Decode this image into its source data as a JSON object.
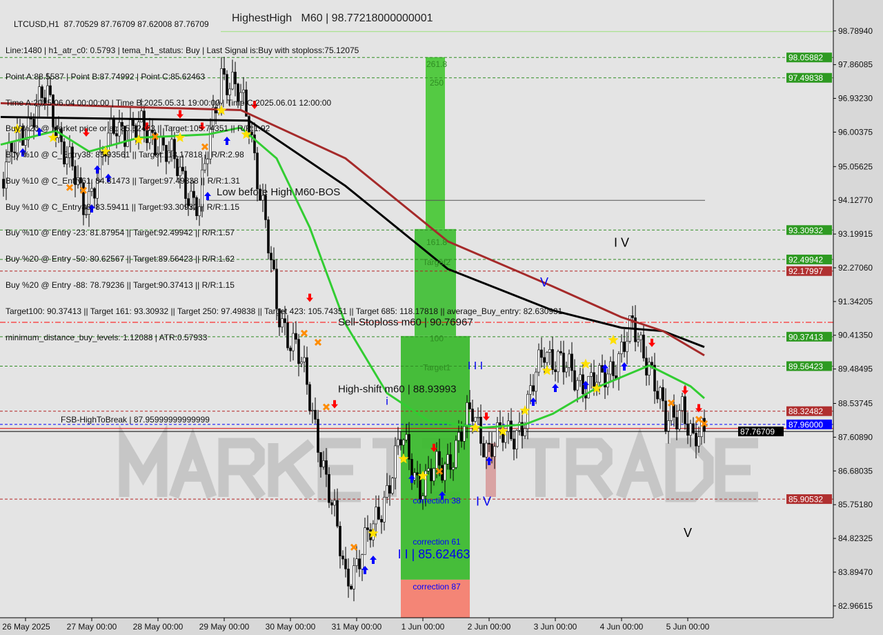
{
  "header": {
    "symbol_line": "LTCUSD,H1  87.70529 87.76709 87.62008 87.76709",
    "lines": [
      "Line:1480 | h1_atr_c0: 0.5793 | tema_h1_status: Buy | Last Signal is:Buy with stoploss:75.12075",
      "Point A:88.5587 | Point B:87.74992 | Point C:85.62463",
      "Time A:2025.06.04 00:00:00 | Time B:2025.05.31 19:00:00 | Time C:2025.06.01 12:00:00",
      "Buy %20 @ Market price or at: 85.62463 || Target:105.74351 || R/R:1.92",
      "Buy %10 @ C_Entry38: 85.93561 || Target:118.17818 || R/R:2.98",
      "Buy %10 @ C_Entry61: 84.81473 || Target:97.49838 || R/R:1.31",
      "Buy %10 @ C_Entry88: 83.59411 || Target:93.30932 || R/R:1.15",
      "Buy %10 @ Entry -23: 81.87954 || Target:92.49942 || R/R:1.57",
      "Buy %20 @ Entry -50: 80.62567 || Target:89.56423 || R/R:1.62",
      "Buy %20 @ Entry -88: 78.79236 || Target:90.37413 || R/R:1.15",
      "Target100: 90.37413 || Target 161: 93.30932 || Target 250: 97.49838 || Target 423: 105.74351 || Target 685: 118.17818 || average_Buy_entry: 82.630931",
      "minimum_distance_buy_levels: 1.12088 | ATR:0.57933"
    ],
    "highest_high": "HighestHigh   M60 | 98.77218000000001"
  },
  "watermark": "MARKETZITRADE",
  "chart_data": {
    "type": "candlestick",
    "symbol": "LTCUSD",
    "timeframe": "H1",
    "ylim": [
      82.64,
      99.64
    ],
    "xlim": [
      "2025-05-25 14:45",
      "2025-06-07 04:45"
    ],
    "grid": false,
    "y_ticks": [
      "98.78940",
      "97.86085",
      "96.93230",
      "96.00375",
      "95.05625",
      "94.12770",
      "93.19915",
      "92.27060",
      "91.34205",
      "90.41350",
      "89.48495",
      "88.53745",
      "87.60890",
      "86.68035",
      "85.75180",
      "84.82325",
      "83.89470",
      "82.96615"
    ],
    "x_ticks": [
      {
        "t": "2025-05-26 00:00",
        "label": "26 May 2025"
      },
      {
        "t": "2025-05-27 00:00",
        "label": "27 May 00:00"
      },
      {
        "t": "2025-05-28 00:00",
        "label": "28 May 00:00"
      },
      {
        "t": "2025-05-29 00:00",
        "label": "29 May 00:00"
      },
      {
        "t": "2025-05-30 00:00",
        "label": "30 May 00:00"
      },
      {
        "t": "2025-05-31 00:00",
        "label": "31 May 00:00"
      },
      {
        "t": "2025-06-01 00:00",
        "label": "1 Jun 00:00"
      },
      {
        "t": "2025-06-02 00:00",
        "label": "2 Jun 00:00"
      },
      {
        "t": "2025-06-03 00:00",
        "label": "3 Jun 00:00"
      },
      {
        "t": "2025-06-04 00:00",
        "label": "4 Jun 00:00"
      },
      {
        "t": "2025-06-05 00:00",
        "label": "5 Jun 00:00"
      }
    ],
    "price_path": [
      [
        "2025-05-25 16:00",
        94.71
      ],
      [
        "2025-05-25 22:00",
        96.03
      ],
      [
        "2025-05-26 08:00",
        96.98
      ],
      [
        "2025-05-26 21:00",
        93.95
      ],
      [
        "2025-05-27 09:00",
        96.22
      ],
      [
        "2025-05-28 00:00",
        95.85
      ],
      [
        "2025-05-28 15:00",
        93.95
      ],
      [
        "2025-05-28 23:00",
        97.75
      ],
      [
        "2025-05-29 09:00",
        96.42
      ],
      [
        "2025-05-29 14:00",
        93.95
      ],
      [
        "2025-05-29 19:00",
        91.1
      ],
      [
        "2025-05-30 02:00",
        90.15
      ],
      [
        "2025-05-30 11:00",
        87.3
      ],
      [
        "2025-05-30 20:00",
        83.69
      ],
      [
        "2025-05-31 06:00",
        85.02
      ],
      [
        "2025-05-31 16:00",
        87.49
      ],
      [
        "2025-05-31 23:00",
        86.35
      ],
      [
        "2025-06-01 07:00",
        86.73
      ],
      [
        "2025-06-01 18:00",
        88.25
      ],
      [
        "2025-06-02 00:00",
        87.3
      ],
      [
        "2025-06-02 13:00",
        88.06
      ],
      [
        "2025-06-02 20:00",
        90.15
      ],
      [
        "2025-06-03 04:00",
        89.39
      ],
      [
        "2025-06-03 16:00",
        89.01
      ],
      [
        "2025-06-04 04:00",
        90.53
      ],
      [
        "2025-06-04 10:00",
        89.77
      ],
      [
        "2025-06-04 16:00",
        87.87
      ],
      [
        "2025-06-04 22:00",
        88.63
      ],
      [
        "2025-06-05 02:00",
        87.3
      ],
      [
        "2025-06-05 06:00",
        87.77
      ]
    ],
    "moving_averages": [
      {
        "color": "#000000",
        "points": [
          [
            "2025-05-25 15:00",
            96.42
          ],
          [
            "2025-05-29 09:00",
            96.32
          ],
          [
            "2025-05-30 20:00",
            94.52
          ],
          [
            "2025-06-01 09:00",
            92.24
          ],
          [
            "2025-06-02 23:00",
            91.1
          ],
          [
            "2025-06-04 00:00",
            90.62
          ],
          [
            "2025-06-04 15:00",
            90.53
          ],
          [
            "2025-06-05 06:00",
            90.09
          ]
        ]
      },
      {
        "color": "#a52a2a",
        "points": [
          [
            "2025-05-25 15:00",
            96.8
          ],
          [
            "2025-05-29 06:00",
            96.61
          ],
          [
            "2025-05-30 20:00",
            95.28
          ],
          [
            "2025-06-01 09:00",
            93.0
          ],
          [
            "2025-06-02 23:00",
            91.76
          ],
          [
            "2025-06-04 00:00",
            90.91
          ],
          [
            "2025-06-04 15:00",
            90.53
          ],
          [
            "2025-06-05 06:00",
            89.86
          ]
        ]
      },
      {
        "color": "#32cd32",
        "points": [
          [
            "2025-05-25 15:00",
            95.66
          ],
          [
            "2025-05-26 11:00",
            96.04
          ],
          [
            "2025-05-26 23:00",
            95.47
          ],
          [
            "2025-05-27 17:00",
            95.85
          ],
          [
            "2025-05-28 18:00",
            95.94
          ],
          [
            "2025-05-29 06:00",
            96.13
          ],
          [
            "2025-05-29 19:00",
            95.28
          ],
          [
            "2025-05-30 07:00",
            93.38
          ],
          [
            "2025-05-30 20:00",
            90.72
          ],
          [
            "2025-05-31 11:00",
            88.82
          ],
          [
            "2025-06-01 02:00",
            88.06
          ],
          [
            "2025-06-01 22:00",
            87.87
          ],
          [
            "2025-06-02 13:00",
            87.96
          ],
          [
            "2025-06-02 23:00",
            88.25
          ],
          [
            "2025-06-03 16:00",
            89.01
          ],
          [
            "2025-06-04 10:00",
            89.58
          ],
          [
            "2025-06-05 01:00",
            89.01
          ],
          [
            "2025-06-05 06:00",
            88.68
          ]
        ]
      }
    ],
    "levels": [
      {
        "price": 98.05882,
        "label": "98.05882",
        "color": "#2e8b22",
        "style": "dash"
      },
      {
        "price": 97.49838,
        "label": "97.49838",
        "color": "#2e8b22",
        "style": "dash"
      },
      {
        "price": 93.30932,
        "label": "93.30932",
        "color": "#2e8b22",
        "style": "dash"
      },
      {
        "price": 92.49942,
        "label": "92.49942",
        "color": "#2e8b22",
        "style": "dash"
      },
      {
        "price": 92.17997,
        "label": "92.17997",
        "color": "#b22222",
        "style": "dash"
      },
      {
        "price": 90.37413,
        "label": "90.37413",
        "color": "#2e8b22",
        "style": "dash"
      },
      {
        "price": 89.56423,
        "label": "89.56423",
        "color": "#2e8b22",
        "style": "dash"
      },
      {
        "price": 88.32482,
        "label": "88.32482",
        "color": "#b22222",
        "style": "dash"
      },
      {
        "price": 87.96,
        "label": "87.96000",
        "color": "#0000ff",
        "style": "dash"
      },
      {
        "price": 87.76709,
        "label": "87.76709",
        "color": "#000000",
        "style": "solid"
      },
      {
        "price": 85.90532,
        "label": "85.90532",
        "color": "#b22222",
        "style": "dash"
      }
    ],
    "annotations": {
      "sell_stoploss": {
        "price": 90.76967,
        "label": "Sell-Stoploss m60 | 90.76967"
      },
      "high_shift": {
        "price": 88.93993,
        "label": "High-shift m60 | 88.93993"
      },
      "fsb": {
        "price": 87.96,
        "label": "FSB-HighToBreak | 87.95999999999999"
      },
      "low_before_high": {
        "price": 94.1277,
        "label": "Low before High   M60-BOS"
      },
      "highest_high_price": 98.77218
    },
    "fib_zones": [
      {
        "from": "2025-06-01 01:00",
        "to": "2025-06-01 08:00",
        "top": 98.067,
        "bottom": 93.337,
        "color": "#4cc83a"
      },
      {
        "from": "2025-05-31 21:00",
        "to": "2025-06-01 12:00",
        "top": 93.337,
        "bottom": 90.393,
        "color": "#44c03a"
      },
      {
        "from": "2025-05-31 16:00",
        "to": "2025-06-01 17:00",
        "top": 90.393,
        "bottom": 83.687,
        "color": "#3dbb30"
      },
      {
        "from": "2025-05-31 16:00",
        "to": "2025-06-01 17:00",
        "top": 83.687,
        "bottom": 82.64,
        "color": "#f48070"
      }
    ],
    "fib_labels": [
      {
        "t": "2025-06-01 05:00",
        "price": 97.8,
        "text": "261.8",
        "color": "#2e8b22"
      },
      {
        "t": "2025-06-01 05:00",
        "price": 97.28,
        "text": "250",
        "color": "#2e8b22"
      },
      {
        "t": "2025-06-01 05:00",
        "price": 92.9,
        "text": "161.8",
        "color": "#2e8b22"
      },
      {
        "t": "2025-06-01 05:00",
        "price": 92.35,
        "text": "Target2",
        "color": "#2e8b22"
      },
      {
        "t": "2025-06-01 05:00",
        "price": 90.25,
        "text": "100",
        "color": "#2e8b22"
      },
      {
        "t": "2025-06-01 05:00",
        "price": 89.45,
        "text": "Target1",
        "color": "#2e8b22"
      },
      {
        "t": "2025-06-01 05:00",
        "price": 85.78,
        "text": "correction 38",
        "color": "#0000ff"
      },
      {
        "t": "2025-06-01 05:00",
        "price": 84.65,
        "text": "correction 61",
        "color": "#0000ff"
      },
      {
        "t": "2025-06-01 05:00",
        "price": 83.42,
        "text": "correction 87",
        "color": "#0000ff"
      }
    ],
    "wave_labels": [
      {
        "t": "2025-05-31 11:00",
        "price": 88.68,
        "text": "i",
        "size": 16
      },
      {
        "t": "2025-06-01 19:00",
        "price": 89.48,
        "text": "I I I",
        "size": 16
      },
      {
        "t": "2025-06-02 20:00",
        "price": 91.76,
        "text": "V",
        "size": 18
      },
      {
        "t": "2025-06-04 00:00",
        "price": 92.85,
        "text": "I V",
        "size": 18,
        "color": "#000000"
      },
      {
        "t": "2025-06-01 22:00",
        "price": 85.73,
        "text": "I V",
        "size": 18
      },
      {
        "t": "2025-06-05 00:00",
        "price": 84.86,
        "text": "V",
        "size": 18,
        "color": "#000000"
      },
      {
        "t": "2025-06-01 04:00",
        "price": 84.46,
        "text": "I I | 85.62463",
        "size": 18
      }
    ],
    "markers": {
      "star": [
        [
          "2025-05-25 21:00",
          96.09
        ],
        [
          "2025-05-26 10:00",
          95.85
        ],
        [
          "2025-05-27 05:00",
          95.47
        ],
        [
          "2025-05-27 17:00",
          95.79
        ],
        [
          "2025-05-28 08:00",
          95.85
        ],
        [
          "2025-05-28 23:00",
          96.6
        ],
        [
          "2025-05-29 08:00",
          95.94
        ],
        [
          "2025-05-31 06:00",
          84.96
        ],
        [
          "2025-05-31 17:00",
          87.01
        ],
        [
          "2025-06-01 00:00",
          86.54
        ],
        [
          "2025-06-01 19:00",
          87.87
        ],
        [
          "2025-06-02 05:00",
          87.77
        ],
        [
          "2025-06-02 13:00",
          88.34
        ],
        [
          "2025-06-02 21:00",
          89.44
        ],
        [
          "2025-06-03 11:00",
          89.62
        ],
        [
          "2025-06-03 21:00",
          90.28
        ],
        [
          "2025-06-03 15:00",
          88.95
        ]
      ],
      "buy_arrow": [
        [
          "2025-05-25 23:00",
          95.56
        ],
        [
          "2025-05-26 05:00",
          96.13
        ],
        [
          "2025-05-27 02:00",
          95.09
        ],
        [
          "2025-05-27 06:00",
          94.86
        ],
        [
          "2025-05-27 00:00",
          94.02
        ],
        [
          "2025-05-28 18:00",
          94.36
        ],
        [
          "2025-05-29 01:00",
          95.88
        ],
        [
          "2025-05-31 03:00",
          84.07
        ],
        [
          "2025-05-31 06:00",
          84.35
        ],
        [
          "2025-05-31 20:00",
          86.58
        ],
        [
          "2025-06-01 07:00",
          86.12
        ],
        [
          "2025-06-02 00:00",
          87.07
        ],
        [
          "2025-06-02 16:00",
          88.7
        ],
        [
          "2025-06-03 00:00",
          89.08
        ],
        [
          "2025-06-03 11:00",
          89.16
        ],
        [
          "2025-06-03 18:00",
          89.62
        ],
        [
          "2025-06-04 01:00",
          89.67
        ]
      ],
      "sell_arrow": [
        [
          "2025-05-26 22:00",
          95.88
        ],
        [
          "2025-05-27 20:00",
          96.04
        ],
        [
          "2025-05-28 08:00",
          96.38
        ],
        [
          "2025-05-28 16:00",
          96.04
        ],
        [
          "2025-05-29 11:00",
          96.64
        ],
        [
          "2025-05-30 07:00",
          91.33
        ],
        [
          "2025-05-30 16:00",
          88.4
        ],
        [
          "2025-06-01 04:00",
          87.2
        ],
        [
          "2025-06-01 23:00",
          88.06
        ],
        [
          "2025-06-04 11:00",
          90.09
        ],
        [
          "2025-06-04 23:00",
          88.78
        ],
        [
          "2025-06-05 04:00",
          88.29
        ]
      ],
      "cross": [
        [
          "2025-05-26 16:00",
          94.48
        ],
        [
          "2025-05-26 21:00",
          94.4
        ],
        [
          "2025-05-27 23:00",
          95.88
        ],
        [
          "2025-05-28 17:00",
          95.6
        ],
        [
          "2025-05-30 05:00",
          90.47
        ],
        [
          "2025-05-30 10:00",
          90.22
        ],
        [
          "2025-05-30 13:00",
          88.44
        ],
        [
          "2025-05-30 23:00",
          84.58
        ],
        [
          "2025-06-01 06:00",
          86.67
        ],
        [
          "2025-06-04 18:00",
          88.55
        ],
        [
          "2025-06-05 04:00",
          88.1
        ],
        [
          "2025-06-05 06:00",
          87.98
        ]
      ]
    },
    "colors": {
      "star": "#ffe000",
      "buy_arrow": "#0000ff",
      "sell_arrow": "#ff0000",
      "cross": "#ff8c00",
      "bull": "#ffffff",
      "bear": "#000000"
    }
  }
}
